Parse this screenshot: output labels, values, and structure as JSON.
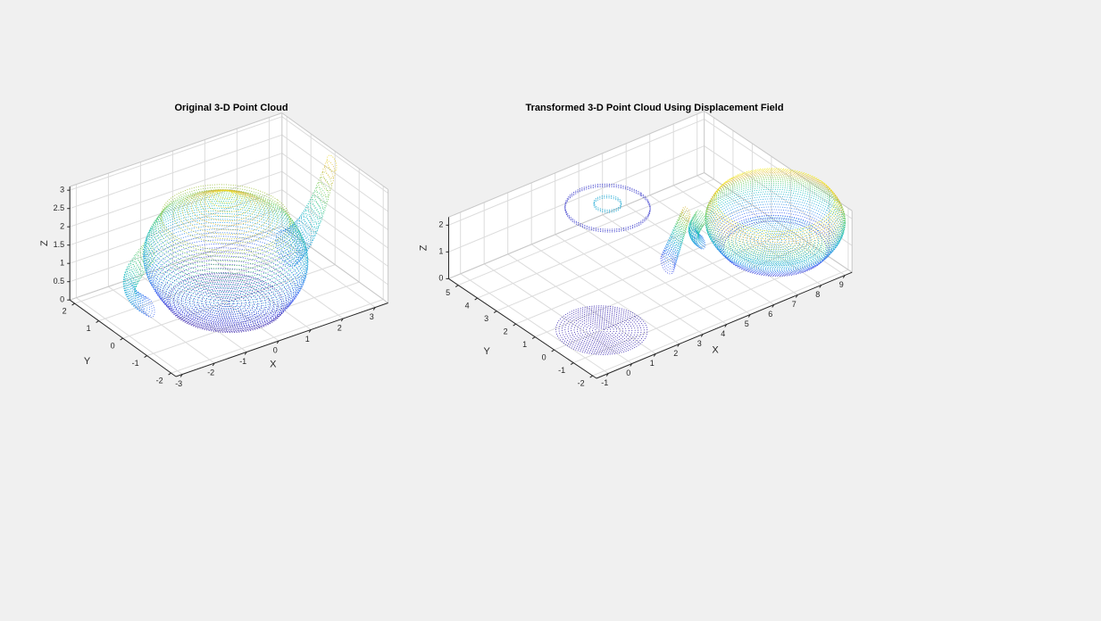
{
  "chart_data": [
    {
      "type": "scatter3d",
      "title": "Original 3-D Point Cloud",
      "xlabel": "X",
      "ylabel": "Y",
      "zlabel": "Z",
      "xlim": [
        -3.2,
        3.4
      ],
      "ylim": [
        -2.2,
        2.2
      ],
      "zlim": [
        0,
        3.1
      ],
      "xticks": [
        -3,
        -2,
        -1,
        0,
        1,
        2,
        3
      ],
      "yticks": [
        -2,
        -1,
        0,
        1,
        2
      ],
      "zticks": [
        0,
        0.5,
        1,
        1.5,
        2,
        2.5,
        3
      ],
      "grid": true
    },
    {
      "type": "scatter3d",
      "title": "Transformed 3-D Point Cloud Using Displacement Field",
      "xlabel": "X",
      "ylabel": "Y",
      "zlabel": "Z",
      "xlim": [
        -1.5,
        9.3
      ],
      "ylim": [
        -2.2,
        5.5
      ],
      "zlim": [
        0,
        2.3
      ],
      "xticks": [
        -1,
        0,
        1,
        2,
        3,
        4,
        5,
        6,
        7,
        8,
        9
      ],
      "yticks": [
        -2,
        -1,
        0,
        1,
        2,
        3,
        4,
        5
      ],
      "zticks": [
        0,
        1,
        2
      ],
      "grid": true
    }
  ]
}
